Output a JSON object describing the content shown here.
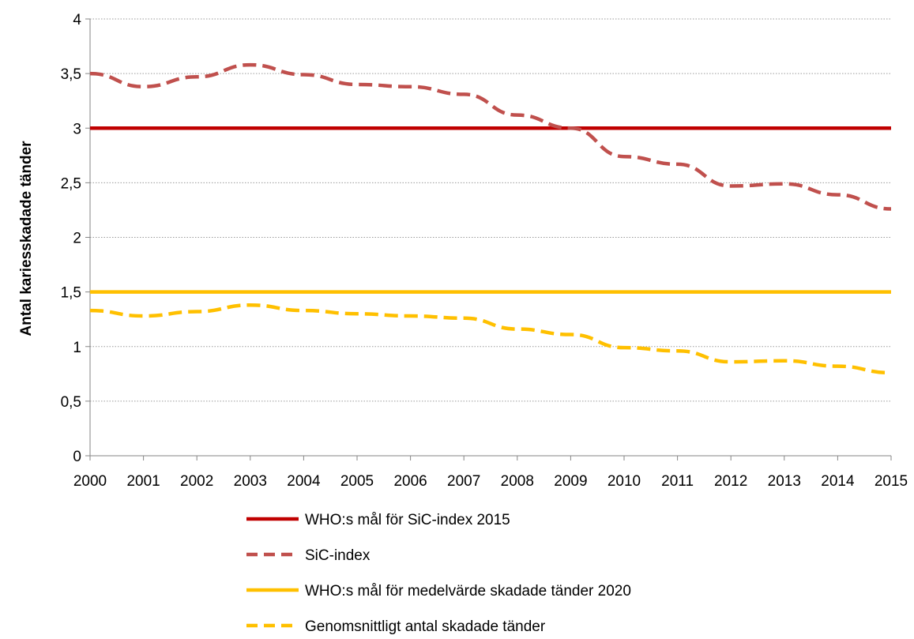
{
  "chart_data": {
    "type": "line",
    "title": "",
    "xlabel": "",
    "ylabel": "Antal kariesskadade tänder",
    "x": [
      "2000",
      "2001",
      "2002",
      "2003",
      "2004",
      "2005",
      "2006",
      "2007",
      "2008",
      "2009",
      "2010",
      "2011",
      "2012",
      "2013",
      "2014",
      "2015"
    ],
    "ylim": [
      0,
      4
    ],
    "yticks": [
      "0",
      "0,5",
      "1",
      "1,5",
      "2",
      "2,5",
      "3",
      "3,5",
      "4"
    ],
    "yticks_values": [
      0,
      0.5,
      1,
      1.5,
      2,
      2.5,
      3,
      3.5,
      4
    ],
    "grid": "horizontal dotted",
    "legend_position": "bottom",
    "series": [
      {
        "name": "WHO:s mål för SiC-index 2015",
        "style": "solid",
        "color": "#C00000",
        "values": [
          3,
          3,
          3,
          3,
          3,
          3,
          3,
          3,
          3,
          3,
          3,
          3,
          3,
          3,
          3,
          3
        ]
      },
      {
        "name": "SiC-index",
        "style": "dashed",
        "color": "#C0504D",
        "values": [
          3.5,
          3.38,
          3.47,
          3.58,
          3.49,
          3.4,
          3.38,
          3.31,
          3.12,
          3.0,
          2.74,
          2.67,
          2.47,
          2.49,
          2.39,
          2.26
        ]
      },
      {
        "name": "WHO:s mål för medelvärde skadade tänder 2020",
        "style": "solid",
        "color": "#FFC000",
        "values": [
          1.5,
          1.5,
          1.5,
          1.5,
          1.5,
          1.5,
          1.5,
          1.5,
          1.5,
          1.5,
          1.5,
          1.5,
          1.5,
          1.5,
          1.5,
          1.5
        ]
      },
      {
        "name": "Genomsnittligt antal skadade tänder",
        "style": "dashed",
        "color": "#FFC000",
        "values": [
          1.33,
          1.28,
          1.32,
          1.38,
          1.33,
          1.3,
          1.28,
          1.26,
          1.16,
          1.11,
          0.99,
          0.96,
          0.86,
          0.87,
          0.82,
          0.76
        ]
      }
    ]
  }
}
